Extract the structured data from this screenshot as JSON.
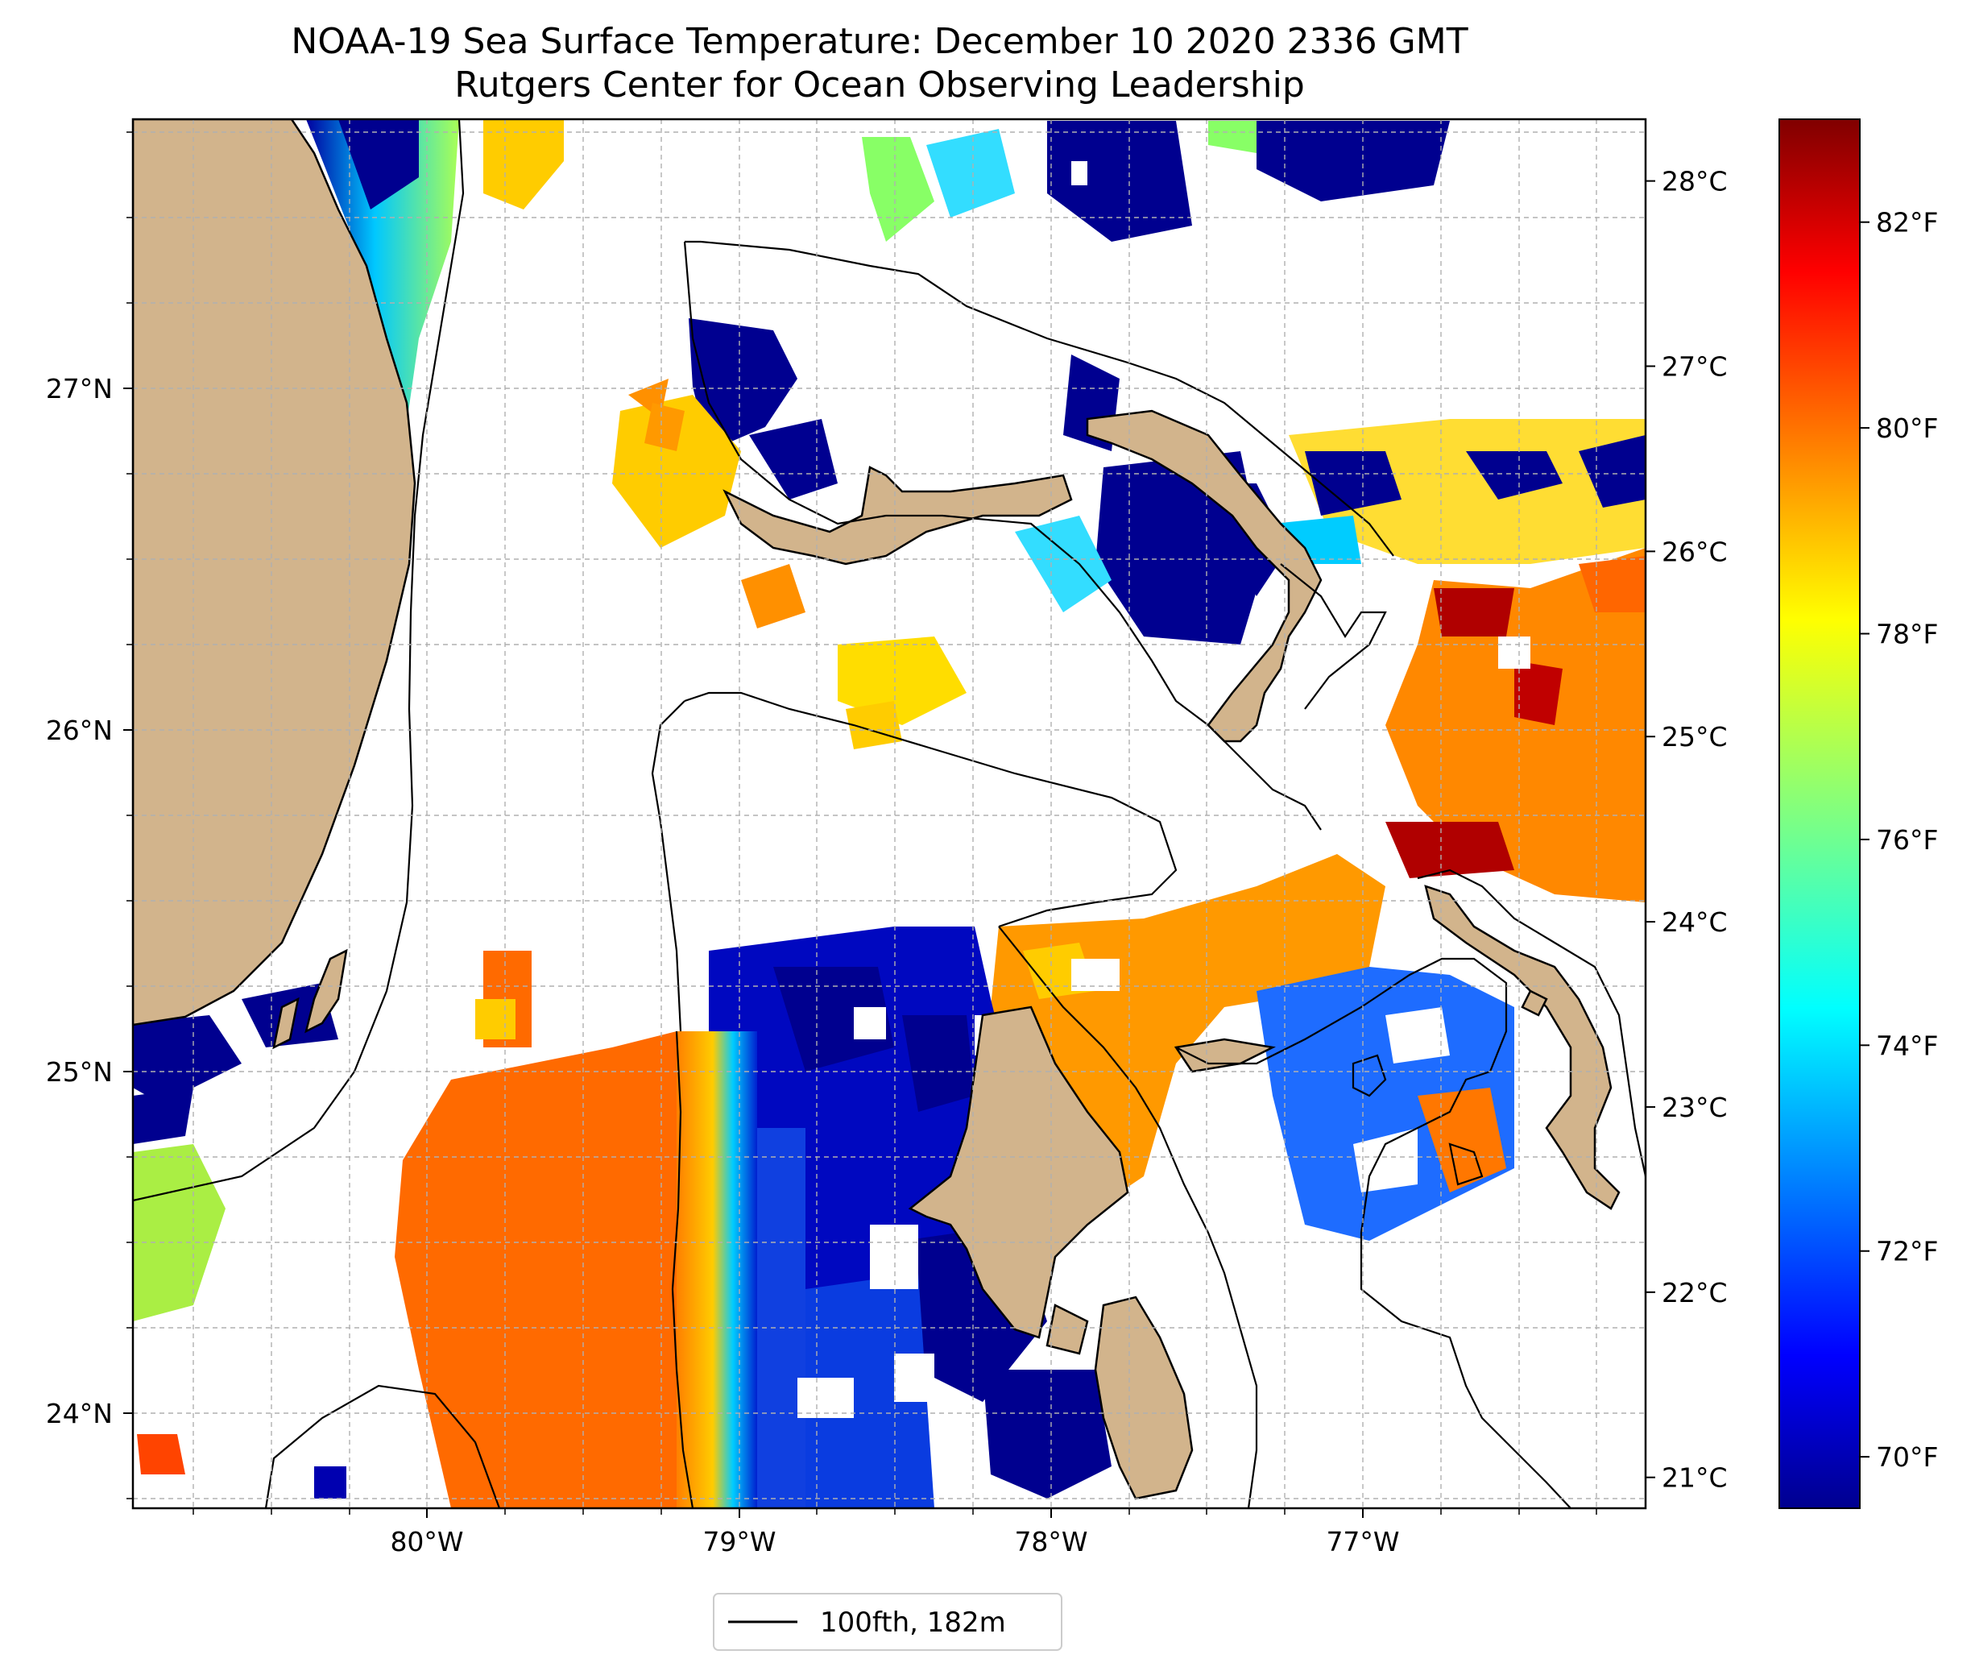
{
  "title": {
    "line1": "NOAA-19 Sea Surface Temperature: December 10 2020 2336 GMT",
    "line2": "Rutgers Center for Ocean Observing Leadership"
  },
  "map": {
    "lon_range": [
      -80.95,
      -76.1
    ],
    "lat_range": [
      23.75,
      27.8
    ],
    "lon_ticks": [
      {
        "value": -80,
        "label": "80°W"
      },
      {
        "value": -79,
        "label": "79°W"
      },
      {
        "value": -78,
        "label": "78°W"
      },
      {
        "value": -77,
        "label": "77°W"
      }
    ],
    "lat_ticks": [
      {
        "value": 24,
        "label": "24°N"
      },
      {
        "value": 25,
        "label": "25°N"
      },
      {
        "value": 26,
        "label": "26°N"
      },
      {
        "value": 27,
        "label": "27°N"
      }
    ],
    "gridlines": true,
    "land_color": "#d2b48c",
    "legend": {
      "label": "100fth, 182m",
      "position": "bottom-center"
    }
  },
  "colorbar": {
    "colormap": "jet",
    "range_f": [
      69.5,
      83.0
    ],
    "fahrenheit_ticks": [
      {
        "value": 70,
        "label": "70°F"
      },
      {
        "value": 72,
        "label": "72°F"
      },
      {
        "value": 74,
        "label": "74°F"
      },
      {
        "value": 76,
        "label": "76°F"
      },
      {
        "value": 78,
        "label": "78°F"
      },
      {
        "value": 80,
        "label": "80°F"
      },
      {
        "value": 82,
        "label": "82°F"
      }
    ],
    "celsius_ticks": [
      {
        "value": 21,
        "label": "21°C"
      },
      {
        "value": 22,
        "label": "22°C"
      },
      {
        "value": 23,
        "label": "23°C"
      },
      {
        "value": 24,
        "label": "24°C"
      },
      {
        "value": 25,
        "label": "25°C"
      },
      {
        "value": 26,
        "label": "26°C"
      },
      {
        "value": 27,
        "label": "27°C"
      },
      {
        "value": 28,
        "label": "28°C"
      }
    ]
  }
}
